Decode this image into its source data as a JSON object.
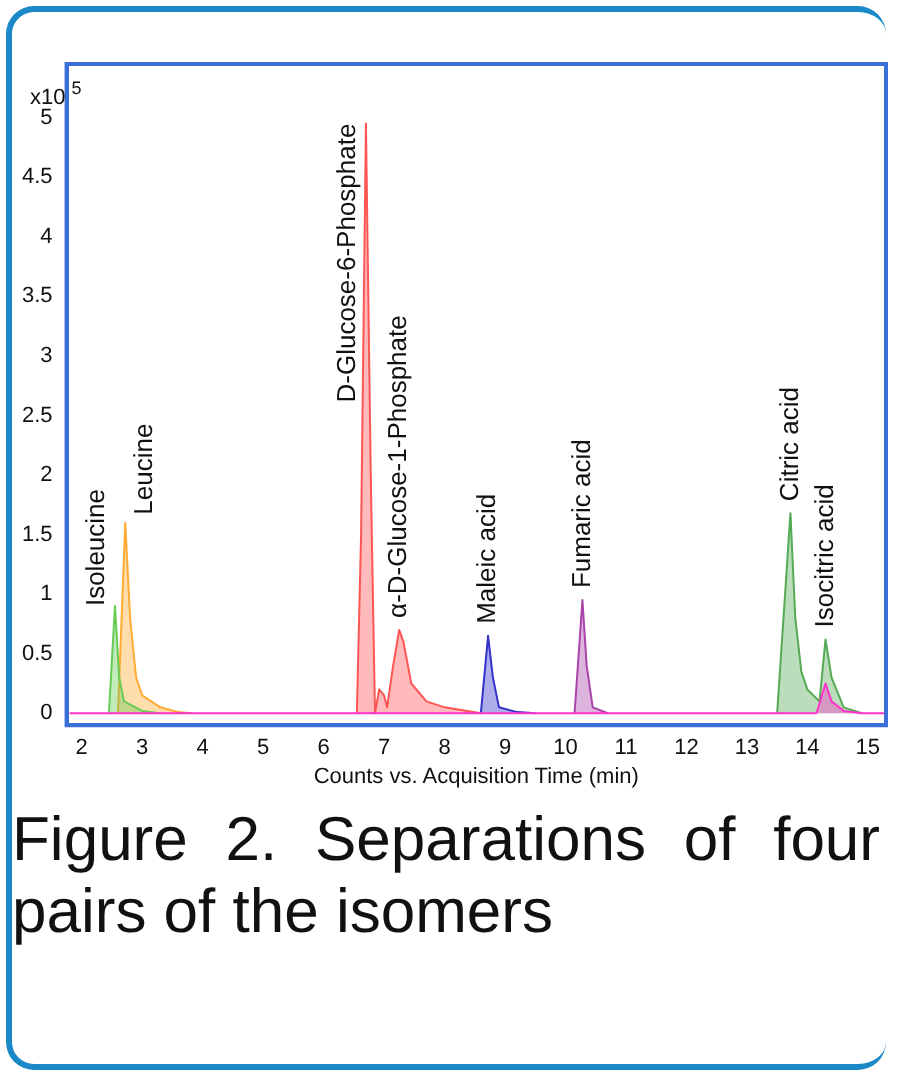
{
  "chart_data": {
    "type": "area",
    "title": "Figure 2. Separations of four pairs of the isomers",
    "xlabel": "Counts vs. Acquisition Time (min)",
    "ylabel": "x10$^{5}$",
    "xlim": [
      1.75,
      15.3
    ],
    "xticks": [
      2,
      3,
      4,
      5,
      6,
      7,
      8,
      9,
      10,
      11,
      12,
      13,
      14,
      15
    ],
    "ylim": [
      -0.1,
      5.45
    ],
    "yticks": [
      0,
      0.5,
      1,
      1.5,
      2,
      2.5,
      3,
      3.5,
      4,
      4.5,
      5
    ],
    "grid": false,
    "legend": false,
    "marker": "none",
    "line_style": "solid",
    "series": [
      {
        "color": "#ff33cc",
        "x": [
          1.8,
          14.15,
          14.3,
          14.4,
          14.6,
          14.9,
          15.3
        ],
        "values": [
          0,
          0,
          0.25,
          0.1,
          0.02,
          0,
          0
        ]
      },
      {
        "color": "#66cc55",
        "x": [
          2.45,
          2.55,
          2.62,
          2.7,
          3.0,
          3.3
        ],
        "values": [
          0,
          0.9,
          0.3,
          0.1,
          0.02,
          0
        ]
      },
      {
        "color": "#ffaa33",
        "x": [
          2.6,
          2.72,
          2.8,
          2.9,
          3.0,
          3.3,
          3.6,
          3.8
        ],
        "values": [
          0,
          1.6,
          0.8,
          0.3,
          0.15,
          0.05,
          0.01,
          0
        ]
      },
      {
        "color": "#ff5555",
        "x": [
          6.55,
          6.62,
          6.7,
          6.78,
          6.85,
          6.92,
          7.0,
          7.05,
          7.15,
          7.25,
          7.32,
          7.45,
          7.7,
          8.0,
          8.6
        ],
        "values": [
          0,
          1.5,
          4.95,
          2,
          0,
          0.2,
          0.15,
          0.05,
          0.4,
          0.7,
          0.6,
          0.25,
          0.1,
          0.05,
          0
        ]
      },
      {
        "color": "#3333cc",
        "x": [
          8.6,
          8.72,
          8.8,
          8.9,
          9.2,
          9.5
        ],
        "values": [
          0,
          0.65,
          0.3,
          0.05,
          0.01,
          0
        ]
      },
      {
        "color": "#aa44aa",
        "x": [
          10.15,
          10.28,
          10.35,
          10.45,
          10.7
        ],
        "values": [
          0,
          0.95,
          0.4,
          0.05,
          0
        ]
      },
      {
        "color": "#55aa55",
        "x": [
          13.5,
          13.72,
          13.8,
          13.9,
          14.0,
          14.2,
          14.3,
          14.4,
          14.6,
          14.9
        ],
        "values": [
          0,
          1.68,
          0.8,
          0.35,
          0.2,
          0.1,
          0.62,
          0.3,
          0.05,
          0
        ]
      }
    ],
    "annotations": [
      {
        "text": "Isoleucine",
        "x": 2.55,
        "y": 0.9
      },
      {
        "text": "Leucine",
        "x": 2.72,
        "y": 1.6
      },
      {
        "text": "D-Glucose-6-Phosphate",
        "x": 6.7,
        "y": 4.95
      },
      {
        "text": "α-D-Glucose-1-Phosphate",
        "x": 7.25,
        "y": 0.7
      },
      {
        "text": "Maleic acid",
        "x": 8.72,
        "y": 0.65
      },
      {
        "text": "Fumaric acid",
        "x": 10.28,
        "y": 0.95
      },
      {
        "text": "Citric acid",
        "x": 13.72,
        "y": 1.68
      },
      {
        "text": "Isocitric acid",
        "x": 14.3,
        "y": 0.62
      }
    ]
  }
}
